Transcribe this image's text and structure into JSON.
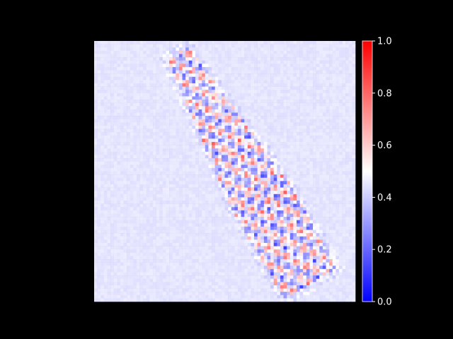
{
  "chart_data": {
    "type": "heatmap",
    "title": "",
    "xlabel": "",
    "ylabel": "",
    "axes_visible": false,
    "colormap": {
      "name": "bwr",
      "stops": [
        "#0000ff",
        "#ffffff",
        "#ff0000"
      ],
      "value_range": [
        0.0,
        1.0
      ],
      "background_value": 0.45
    },
    "colorbar": {
      "ticks": [
        0.0,
        0.2,
        0.4,
        0.6,
        0.8,
        1.0
      ],
      "tick_labels": [
        "0.0",
        "0.2",
        "0.4",
        "0.6",
        "0.8",
        "1.0"
      ],
      "placement": "right"
    },
    "grid": {
      "cols": 80,
      "rows": 80,
      "description_values": "diagonal band of alternating high (~0.6-0.85) and low (~0.15-0.35) values from upper-left to lower-right over a near-uniform background of ~0.45"
    }
  }
}
